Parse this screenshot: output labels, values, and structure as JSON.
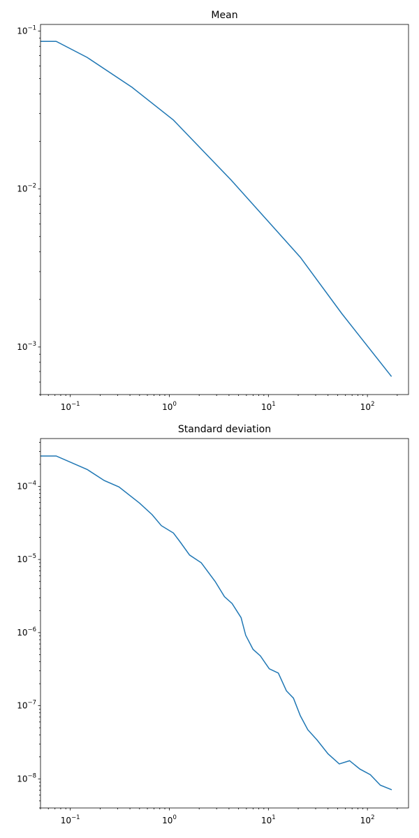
{
  "chart_data": [
    {
      "type": "line",
      "title": "Mean",
      "xscale": "log",
      "yscale": "log",
      "color": "#1f77b4",
      "x": [
        0.05,
        0.072,
        0.148,
        0.42,
        1.1,
        4.2,
        21,
        55,
        175
      ],
      "values": [
        0.086,
        0.086,
        0.068,
        0.044,
        0.0273,
        0.0114,
        0.0037,
        0.00163,
        0.00065
      ],
      "xlim": [
        0.05,
        260
      ],
      "ylim": [
        0.0005,
        0.11
      ],
      "xticks": [
        {
          "value": 0.1,
          "label": "10",
          "exponent": "−1"
        },
        {
          "value": 1,
          "label": "10",
          "exponent": "0"
        },
        {
          "value": 10,
          "label": "10",
          "exponent": "1"
        },
        {
          "value": 100,
          "label": "10",
          "exponent": "2"
        }
      ],
      "yticks": [
        {
          "value": 0.001,
          "label": "10",
          "exponent": "−3"
        },
        {
          "value": 0.01,
          "label": "10",
          "exponent": "−2"
        },
        {
          "value": 0.1,
          "label": "10",
          "exponent": "−1"
        }
      ]
    },
    {
      "type": "line",
      "title": "Standard deviation",
      "xscale": "log",
      "yscale": "log",
      "color": "#1f77b4",
      "x": [
        0.05,
        0.072,
        0.148,
        0.22,
        0.31,
        0.5,
        0.67,
        0.83,
        1.1,
        1.3,
        1.6,
        2.1,
        2.9,
        3.6,
        4.3,
        5.3,
        5.9,
        7.0,
        8.3,
        10.2,
        12.6,
        15.2,
        17.9,
        21,
        25,
        31,
        40,
        52,
        66,
        84,
        107,
        135,
        176
      ],
      "values": [
        0.00026,
        0.00026,
        0.00017,
        0.00012,
        9.8e-05,
        5.9e-05,
        4.1e-05,
        2.9e-05,
        2.3e-05,
        1.7e-05,
        1.15e-05,
        9e-06,
        5e-06,
        3.1e-06,
        2.5e-06,
        1.6e-06,
        9.2e-07,
        5.9e-07,
        4.8e-07,
        3.2e-07,
        2.8e-07,
        1.6e-07,
        1.27e-07,
        7.3e-08,
        4.7e-08,
        3.4e-08,
        2.2e-08,
        1.6e-08,
        1.77e-08,
        1.36e-08,
        1.14e-08,
        8.2e-09,
        7.1e-09
      ],
      "xlim": [
        0.05,
        260
      ],
      "ylim": [
        4e-09,
        0.00045
      ],
      "xticks": [
        {
          "value": 0.1,
          "label": "10",
          "exponent": "−1"
        },
        {
          "value": 1,
          "label": "10",
          "exponent": "0"
        },
        {
          "value": 10,
          "label": "10",
          "exponent": "1"
        },
        {
          "value": 100,
          "label": "10",
          "exponent": "2"
        }
      ],
      "yticks": [
        {
          "value": 1e-08,
          "label": "10",
          "exponent": "−8"
        },
        {
          "value": 1e-07,
          "label": "10",
          "exponent": "−7"
        },
        {
          "value": 1e-06,
          "label": "10",
          "exponent": "−6"
        },
        {
          "value": 1e-05,
          "label": "10",
          "exponent": "−5"
        },
        {
          "value": 0.0001,
          "label": "10",
          "exponent": "−4"
        }
      ]
    }
  ]
}
